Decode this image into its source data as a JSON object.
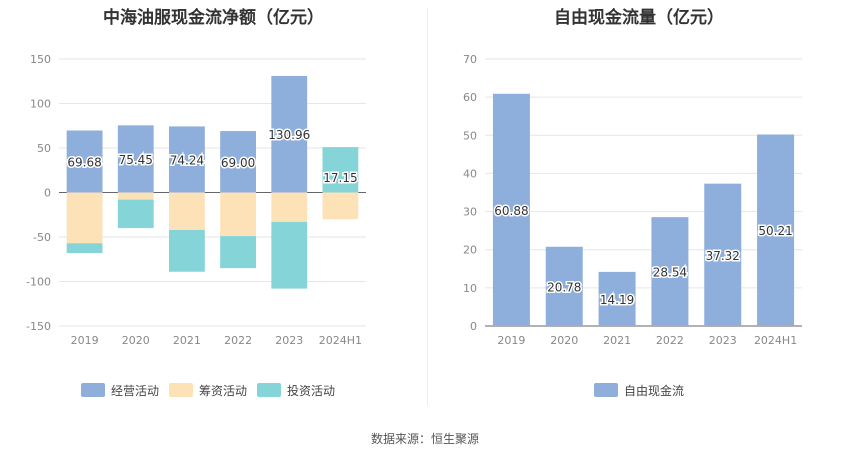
{
  "source_text": "数据来源：恒生聚源",
  "chart_data": [
    {
      "type": "bar",
      "stacked": true,
      "title": "中海油服现金流净额（亿元）",
      "categories": [
        "2019",
        "2020",
        "2021",
        "2022",
        "2023",
        "2024H1"
      ],
      "ylim": [
        -150,
        150
      ],
      "yticks": [
        150,
        100,
        50,
        0,
        -50,
        -100,
        -150
      ],
      "grid": true,
      "legend": "bottom",
      "series": [
        {
          "name": "经营活动",
          "color": "#8eaedb",
          "values": [
            69.68,
            75.45,
            74.24,
            69.0,
            130.96,
            0
          ],
          "labels": [
            "69.68",
            "75.45",
            "74.24",
            "69.00",
            "130.96",
            ""
          ]
        },
        {
          "name": "筹资活动",
          "color": "#fde2b8",
          "values": [
            -57,
            -8,
            -42,
            -49,
            -33,
            -30
          ]
        },
        {
          "name": "投资活动",
          "color": "#85d4d7",
          "values": [
            -11,
            -32,
            -47,
            -36,
            -75,
            51
          ]
        }
      ],
      "extra_labels": [
        {
          "category": "2024H1",
          "text": "17.15",
          "value": 17.15
        }
      ]
    },
    {
      "type": "bar",
      "title": "自由现金流量（亿元）",
      "categories": [
        "2019",
        "2020",
        "2021",
        "2022",
        "2023",
        "2024H1"
      ],
      "ylim": [
        0,
        70
      ],
      "yticks": [
        70,
        60,
        50,
        40,
        30,
        20,
        10,
        0
      ],
      "grid": true,
      "legend": "bottom",
      "series": [
        {
          "name": "自由现金流",
          "color": "#8eaedb",
          "values": [
            60.88,
            20.78,
            14.19,
            28.54,
            37.32,
            50.21
          ],
          "labels": [
            "60.88",
            "20.78",
            "14.19",
            "28.54",
            "37.32",
            "50.21"
          ]
        }
      ]
    }
  ]
}
